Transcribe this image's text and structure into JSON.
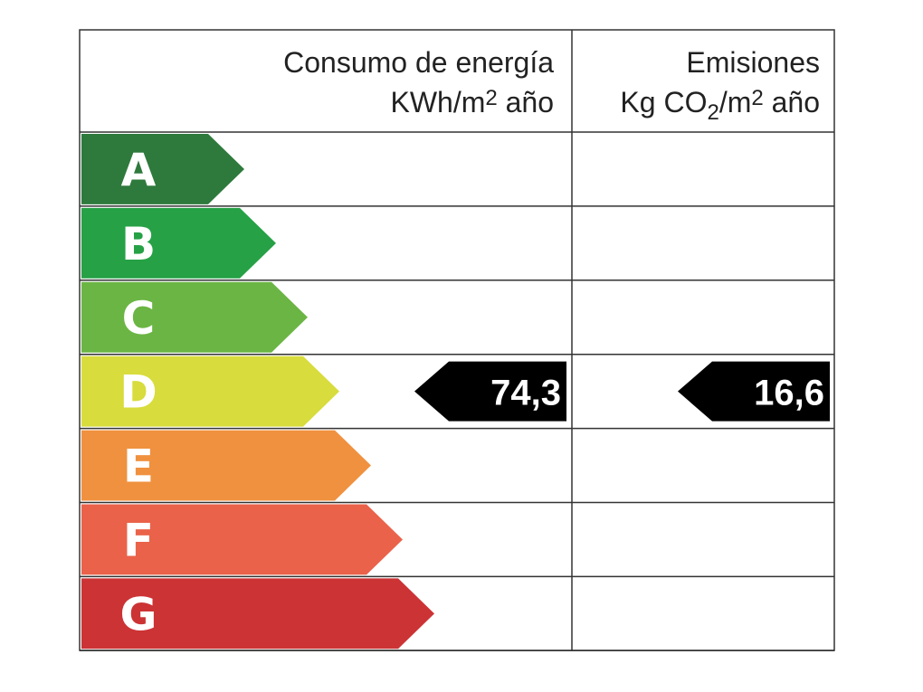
{
  "header": {
    "energy_title": "Consumo de energía",
    "energy_unit": {
      "base": "KWh/m",
      "sup": "2",
      "rest": " año"
    },
    "emissions_title": "Emisiones",
    "emissions_unit": {
      "base": "Kg CO",
      "sub": "2",
      "mid": "/m",
      "sup": "2",
      "rest": " año"
    }
  },
  "rows": [
    {
      "letter": "A",
      "color": "#2e7a3c"
    },
    {
      "letter": "B",
      "color": "#26a146"
    },
    {
      "letter": "C",
      "color": "#6bb544"
    },
    {
      "letter": "D",
      "color": "#d8dc3c",
      "energy": "74,3",
      "emissions": "16,6"
    },
    {
      "letter": "E",
      "color": "#f0913f"
    },
    {
      "letter": "F",
      "color": "#ea6249"
    },
    {
      "letter": "G",
      "color": "#cc3335"
    }
  ]
}
